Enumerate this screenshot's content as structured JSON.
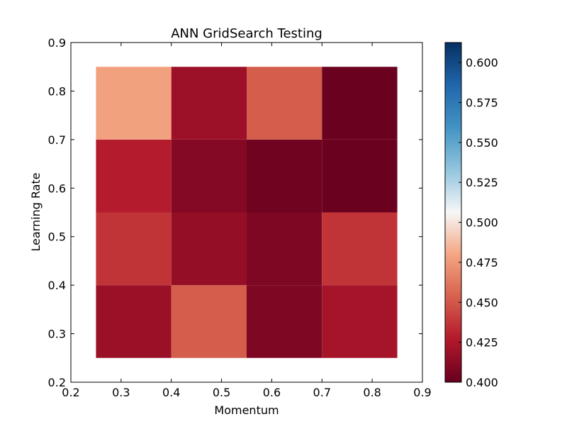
{
  "chart_data": {
    "type": "heatmap",
    "title": "ANN GridSearch Testing",
    "xlabel": "Momentum",
    "ylabel": "Learning Rate",
    "xlim": [
      0.2,
      0.9
    ],
    "ylim": [
      0.2,
      0.9
    ],
    "x_ticks": [
      0.2,
      0.3,
      0.4,
      0.5,
      0.6,
      0.7,
      0.8,
      0.9
    ],
    "y_ticks": [
      0.2,
      0.3,
      0.4,
      0.5,
      0.6,
      0.7,
      0.8,
      0.9
    ],
    "x_tick_labels": [
      "0.2",
      "0.3",
      "0.4",
      "0.5",
      "0.6",
      "0.7",
      "0.8",
      "0.9"
    ],
    "y_tick_labels": [
      "0.2",
      "0.3",
      "0.4",
      "0.5",
      "0.6",
      "0.7",
      "0.8",
      "0.9"
    ],
    "x_centers": [
      0.325,
      0.475,
      0.625,
      0.775
    ],
    "y_centers": [
      0.325,
      0.475,
      0.625,
      0.775
    ],
    "cell_width": 0.15,
    "cell_height": 0.15,
    "values": [
      [
        0.418,
        0.452,
        0.408,
        0.422
      ],
      [
        0.437,
        0.416,
        0.408,
        0.437
      ],
      [
        0.428,
        0.41,
        0.403,
        0.401
      ],
      [
        0.478,
        0.419,
        0.452,
        0.401
      ]
    ],
    "grid": false,
    "colormap": "RdBu",
    "colorbar": {
      "min": 0.4,
      "max": 0.6125,
      "ticks": [
        0.4,
        0.425,
        0.45,
        0.475,
        0.5,
        0.525,
        0.55,
        0.575,
        0.6
      ],
      "tick_labels": [
        "0.400",
        "0.425",
        "0.450",
        "0.475",
        "0.500",
        "0.525",
        "0.550",
        "0.575",
        "0.600"
      ]
    }
  }
}
